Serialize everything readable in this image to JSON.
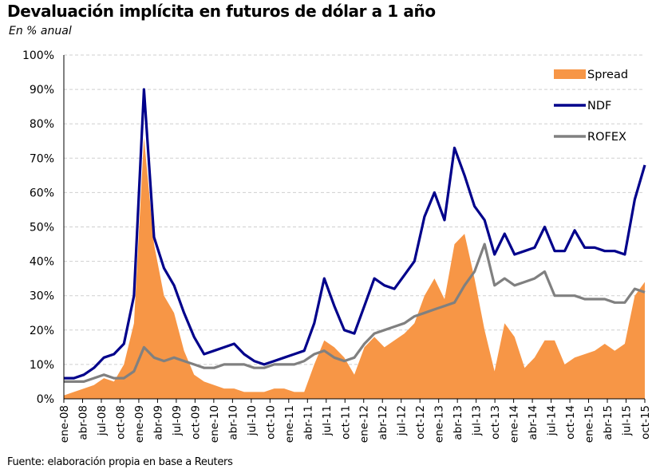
{
  "chart_data": {
    "type": "line",
    "title": "Devaluación implícita en futuros de dólar a 1 año",
    "subtitle": "En % anual",
    "source": "Fuente: elaboración propia en base a Reuters",
    "y_ticks": [
      "0%",
      "10%",
      "20%",
      "30%",
      "40%",
      "50%",
      "60%",
      "70%",
      "80%",
      "90%",
      "100%"
    ],
    "ylim": [
      0,
      100
    ],
    "grid": true,
    "legend_position": "top-right",
    "x_ticks": [
      "ene-08",
      "abr-08",
      "jul-08",
      "oct-08",
      "ene-09",
      "abr-09",
      "jul-09",
      "oct-09",
      "ene-10",
      "abr-10",
      "jul-10",
      "oct-10",
      "ene-11",
      "abr-11",
      "jul-11",
      "oct-11",
      "ene-12",
      "abr-12",
      "jul-12",
      "oct-12",
      "ene-13",
      "abr-13",
      "jul-13",
      "oct-13",
      "ene-14",
      "abr-14",
      "jul-14",
      "oct-14",
      "ene-15",
      "abr-15",
      "jul-15",
      "oct-15"
    ],
    "colors": {
      "Spread": "#f79646",
      "NDF": "#00008b",
      "ROFEX": "#808080"
    },
    "series": [
      {
        "name": "Spread",
        "kind": "area",
        "points": [
          [
            0,
            1
          ],
          [
            1,
            2
          ],
          [
            2,
            3
          ],
          [
            3,
            4
          ],
          [
            4,
            6
          ],
          [
            5,
            5
          ],
          [
            6,
            10
          ],
          [
            7,
            22
          ],
          [
            8,
            76
          ],
          [
            9,
            45
          ],
          [
            10,
            30
          ],
          [
            11,
            25
          ],
          [
            12,
            14
          ],
          [
            13,
            7
          ],
          [
            14,
            5
          ],
          [
            15,
            4
          ],
          [
            16,
            3
          ],
          [
            17,
            3
          ],
          [
            18,
            2
          ],
          [
            19,
            2
          ],
          [
            20,
            2
          ],
          [
            21,
            3
          ],
          [
            22,
            3
          ],
          [
            23,
            2
          ],
          [
            24,
            2
          ],
          [
            25,
            10
          ],
          [
            26,
            17
          ],
          [
            27,
            15
          ],
          [
            28,
            12
          ],
          [
            29,
            7
          ],
          [
            30,
            15
          ],
          [
            31,
            18
          ],
          [
            32,
            15
          ],
          [
            33,
            17
          ],
          [
            34,
            19
          ],
          [
            35,
            22
          ],
          [
            36,
            30
          ],
          [
            37,
            35
          ],
          [
            38,
            29
          ],
          [
            39,
            45
          ],
          [
            40,
            48
          ],
          [
            41,
            35
          ],
          [
            42,
            20
          ],
          [
            43,
            8
          ],
          [
            44,
            22
          ],
          [
            45,
            18
          ],
          [
            46,
            9
          ],
          [
            47,
            12
          ],
          [
            48,
            17
          ],
          [
            49,
            17
          ],
          [
            50,
            10
          ],
          [
            51,
            12
          ],
          [
            52,
            13
          ],
          [
            53,
            14
          ],
          [
            54,
            16
          ],
          [
            55,
            14
          ],
          [
            56,
            16
          ],
          [
            57,
            30
          ],
          [
            58,
            34
          ]
        ]
      },
      {
        "name": "NDF",
        "kind": "line",
        "points": [
          [
            0,
            6
          ],
          [
            1,
            6
          ],
          [
            2,
            7
          ],
          [
            3,
            9
          ],
          [
            4,
            12
          ],
          [
            5,
            13
          ],
          [
            6,
            16
          ],
          [
            7,
            30
          ],
          [
            8,
            90
          ],
          [
            9,
            47
          ],
          [
            10,
            38
          ],
          [
            11,
            33
          ],
          [
            12,
            25
          ],
          [
            13,
            18
          ],
          [
            14,
            13
          ],
          [
            15,
            14
          ],
          [
            16,
            15
          ],
          [
            17,
            16
          ],
          [
            18,
            13
          ],
          [
            19,
            11
          ],
          [
            20,
            10
          ],
          [
            21,
            11
          ],
          [
            22,
            12
          ],
          [
            23,
            13
          ],
          [
            24,
            14
          ],
          [
            25,
            22
          ],
          [
            26,
            35
          ],
          [
            27,
            27
          ],
          [
            28,
            20
          ],
          [
            29,
            19
          ],
          [
            30,
            27
          ],
          [
            31,
            35
          ],
          [
            32,
            33
          ],
          [
            33,
            32
          ],
          [
            34,
            36
          ],
          [
            35,
            40
          ],
          [
            36,
            53
          ],
          [
            37,
            60
          ],
          [
            38,
            52
          ],
          [
            39,
            73
          ],
          [
            40,
            65
          ],
          [
            41,
            56
          ],
          [
            42,
            52
          ],
          [
            43,
            42
          ],
          [
            44,
            48
          ],
          [
            45,
            42
          ],
          [
            46,
            43
          ],
          [
            47,
            44
          ],
          [
            48,
            50
          ],
          [
            49,
            43
          ],
          [
            50,
            43
          ],
          [
            51,
            49
          ],
          [
            52,
            44
          ],
          [
            53,
            44
          ],
          [
            54,
            43
          ],
          [
            55,
            43
          ],
          [
            56,
            42
          ],
          [
            57,
            58
          ],
          [
            58,
            68
          ]
        ]
      },
      {
        "name": "ROFEX",
        "kind": "line",
        "points": [
          [
            0,
            5
          ],
          [
            1,
            5
          ],
          [
            2,
            5
          ],
          [
            3,
            6
          ],
          [
            4,
            7
          ],
          [
            5,
            6
          ],
          [
            6,
            6
          ],
          [
            7,
            8
          ],
          [
            8,
            15
          ],
          [
            9,
            12
          ],
          [
            10,
            11
          ],
          [
            11,
            12
          ],
          [
            12,
            11
          ],
          [
            13,
            10
          ],
          [
            14,
            9
          ],
          [
            15,
            9
          ],
          [
            16,
            10
          ],
          [
            17,
            10
          ],
          [
            18,
            10
          ],
          [
            19,
            9
          ],
          [
            20,
            9
          ],
          [
            21,
            10
          ],
          [
            22,
            10
          ],
          [
            23,
            10
          ],
          [
            24,
            11
          ],
          [
            25,
            13
          ],
          [
            26,
            14
          ],
          [
            27,
            12
          ],
          [
            28,
            11
          ],
          [
            29,
            12
          ],
          [
            30,
            16
          ],
          [
            31,
            19
          ],
          [
            32,
            20
          ],
          [
            33,
            21
          ],
          [
            34,
            22
          ],
          [
            35,
            24
          ],
          [
            36,
            25
          ],
          [
            37,
            26
          ],
          [
            38,
            27
          ],
          [
            39,
            28
          ],
          [
            40,
            33
          ],
          [
            41,
            37
          ],
          [
            42,
            45
          ],
          [
            43,
            33
          ],
          [
            44,
            35
          ],
          [
            45,
            33
          ],
          [
            46,
            34
          ],
          [
            47,
            35
          ],
          [
            48,
            37
          ],
          [
            49,
            30
          ],
          [
            50,
            30
          ],
          [
            51,
            30
          ],
          [
            52,
            29
          ],
          [
            53,
            29
          ],
          [
            54,
            29
          ],
          [
            55,
            28
          ],
          [
            56,
            28
          ],
          [
            57,
            32
          ],
          [
            58,
            31
          ]
        ]
      }
    ]
  }
}
